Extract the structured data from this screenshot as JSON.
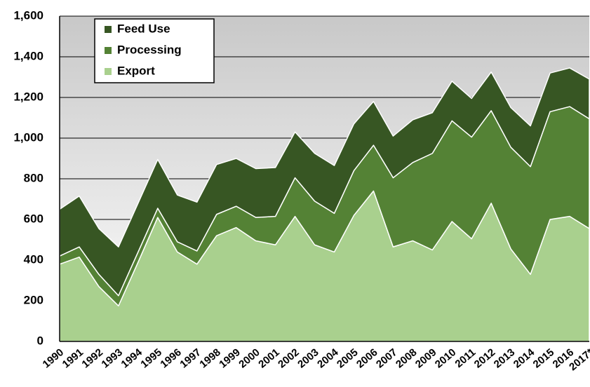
{
  "chart_data": {
    "type": "stacked-area",
    "categories": [
      "1990",
      "1991",
      "1992",
      "1993",
      "1994",
      "1995",
      "1996",
      "1997",
      "1998",
      "1999",
      "2000",
      "2001",
      "2002",
      "2003",
      "2004",
      "2005",
      "2006",
      "2007",
      "2008",
      "2009",
      "2010",
      "2011",
      "2012",
      "2013",
      "2014",
      "2015",
      "2016",
      "2017*"
    ],
    "series": [
      {
        "name": "Export",
        "color": "#a9d08e",
        "values": [
          380,
          415,
          270,
          175,
          390,
          610,
          440,
          380,
          520,
          560,
          495,
          475,
          615,
          475,
          440,
          620,
          740,
          465,
          495,
          450,
          590,
          505,
          680,
          455,
          330,
          600,
          615,
          555
        ]
      },
      {
        "name": "Processing",
        "color": "#548235",
        "values": [
          40,
          50,
          60,
          50,
          50,
          45,
          50,
          65,
          105,
          105,
          115,
          140,
          190,
          215,
          190,
          220,
          225,
          340,
          385,
          475,
          495,
          500,
          455,
          500,
          530,
          530,
          540,
          540
        ]
      },
      {
        "name": "Feed Use",
        "color": "#375623",
        "values": [
          230,
          250,
          225,
          240,
          240,
          240,
          230,
          240,
          245,
          235,
          240,
          240,
          225,
          235,
          235,
          230,
          215,
          205,
          210,
          200,
          195,
          190,
          190,
          195,
          200,
          190,
          190,
          195
        ]
      }
    ],
    "ylim": [
      0,
      1600
    ],
    "yticks": [
      0,
      200,
      400,
      600,
      800,
      {
        "value": 1000,
        "label": "1,000"
      },
      {
        "value": 1200,
        "label": "1,200"
      },
      {
        "value": 1400,
        "label": "1,400"
      },
      {
        "value": 1600,
        "label": "1,600"
      }
    ],
    "grid": true,
    "legend": "top-left"
  }
}
